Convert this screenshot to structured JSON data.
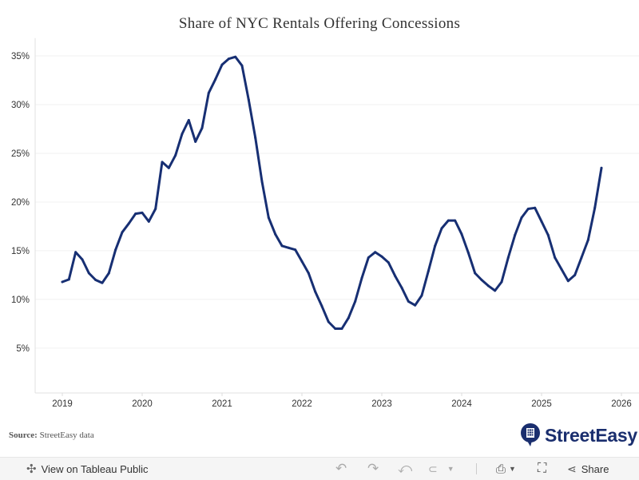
{
  "chart_data": {
    "type": "line",
    "title": "Share of NYC Rentals Offering Concessions",
    "xlabel": "",
    "ylabel": "",
    "ylim": [
      0.4,
      36.5
    ],
    "y_ticks": [
      "5%",
      "10%",
      "15%",
      "20%",
      "25%",
      "30%",
      "35%"
    ],
    "y_tick_values": [
      5,
      10,
      15,
      20,
      25,
      30,
      35
    ],
    "x_ticks": [
      "2019",
      "2020",
      "2021",
      "2022",
      "2023",
      "2024",
      "2025",
      "2026"
    ],
    "grid": "horizontal",
    "line_color": "#172f73",
    "x_start": "2019-01",
    "x_frequency": "monthly",
    "series": [
      {
        "values": [
          11.8,
          12.05,
          14.85,
          14.1,
          12.7,
          12.0,
          11.7,
          12.7,
          15.1,
          16.9,
          17.8,
          18.8,
          18.9,
          18.0,
          19.3,
          24.1,
          23.5,
          24.8,
          27.0,
          28.4,
          26.2,
          27.6,
          31.2,
          32.6,
          34.1,
          34.7,
          34.9,
          34.0,
          30.5,
          26.6,
          22.1,
          18.4,
          16.7,
          15.5,
          15.3,
          15.1,
          13.9,
          12.7,
          10.8,
          9.3,
          7.7,
          7.0,
          7.0,
          8.1,
          9.8,
          12.2,
          14.3,
          14.85,
          14.4,
          13.8,
          12.4,
          11.2,
          9.8,
          9.4,
          10.4,
          12.9,
          15.5,
          17.3,
          18.1,
          18.1,
          16.7,
          14.8,
          12.7,
          12.0,
          11.4,
          10.9,
          11.8,
          14.3,
          16.6,
          18.4,
          19.3,
          19.4,
          18.0,
          16.6,
          14.3,
          13.1,
          11.9,
          12.5,
          14.3,
          16.1,
          19.4,
          23.5
        ]
      }
    ]
  },
  "source": {
    "label": "Source:",
    "text": "StreetEasy data"
  },
  "logo": {
    "text": "StreetEasy",
    "color": "#1a2e6e"
  },
  "toolbar": {
    "view_label": "View on Tableau Public",
    "share_label": "Share"
  }
}
